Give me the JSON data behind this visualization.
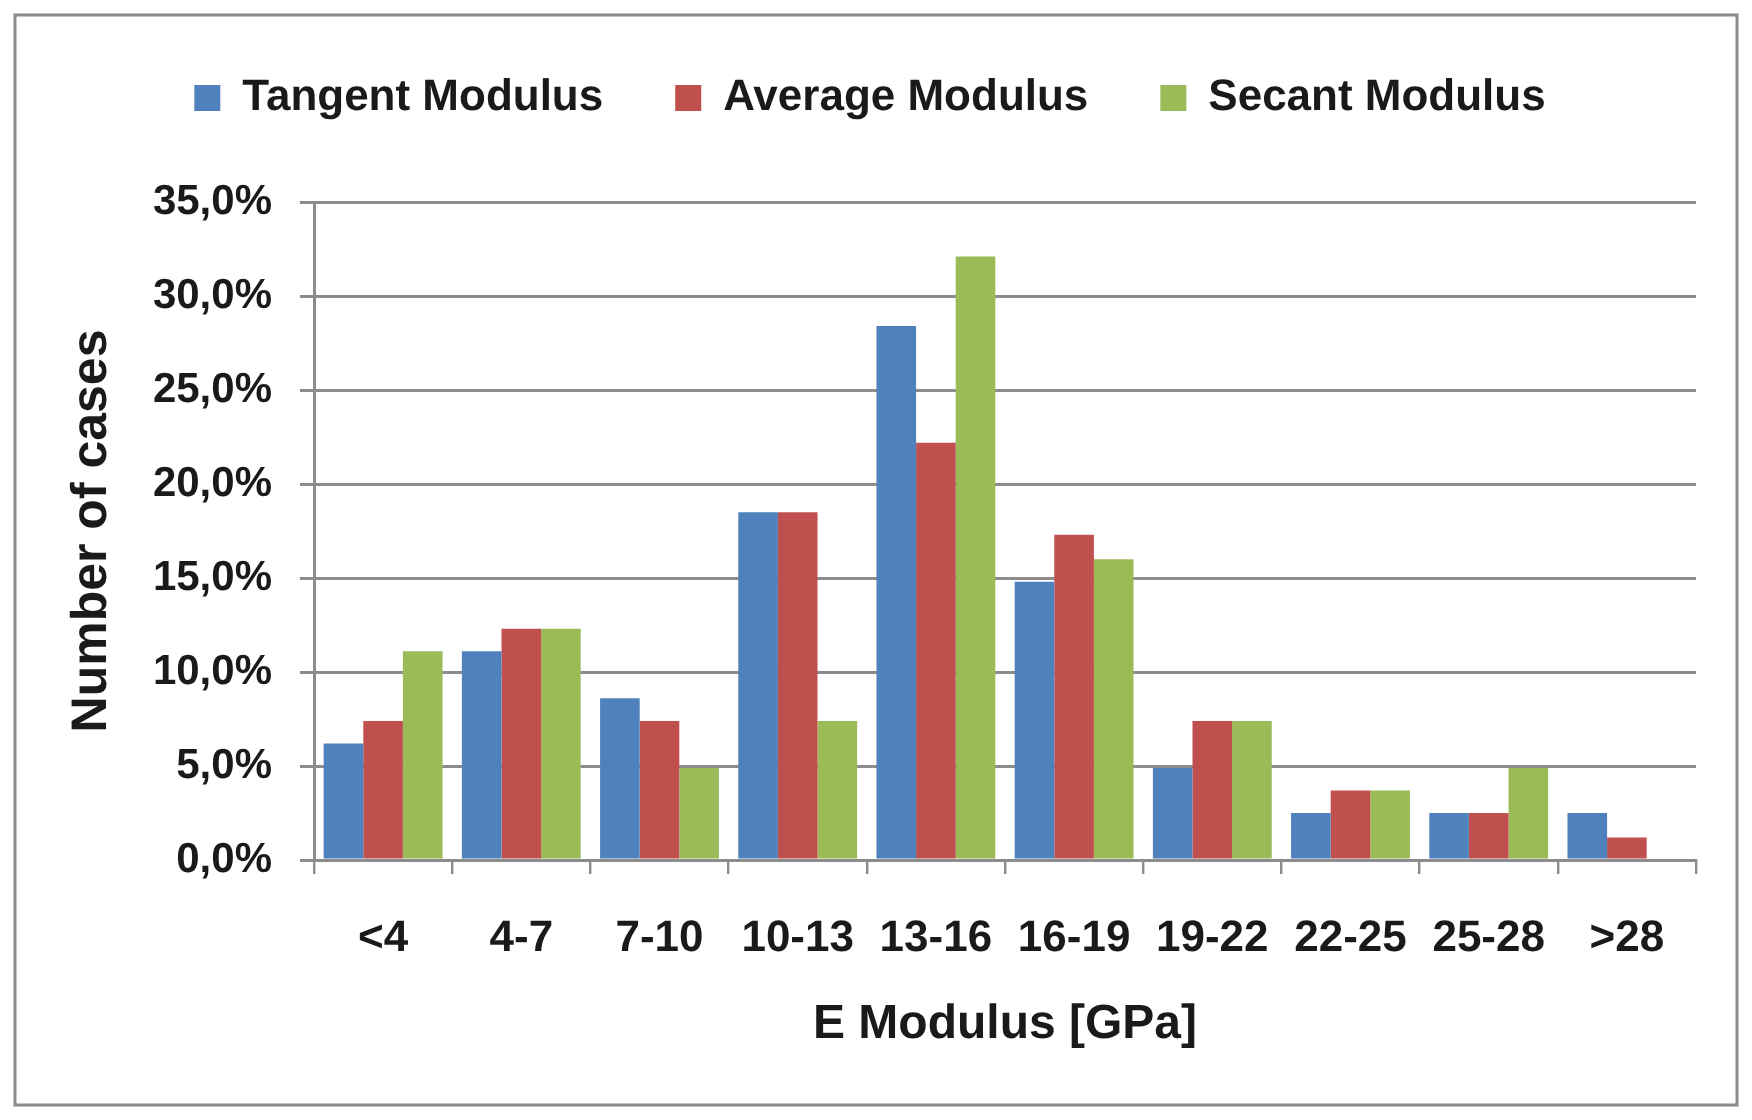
{
  "chart_data": {
    "type": "bar",
    "xlabel": "E Modulus [GPa]",
    "ylabel": "Number of cases",
    "categories": [
      "<4",
      "4-7",
      "7-10",
      "10-13",
      "13-16",
      "16-19",
      "19-22",
      "22-25",
      "25-28",
      ">28"
    ],
    "series": [
      {
        "name": "Tangent Modulus",
        "color": "#4f81bd",
        "values": [
          6.2,
          11.1,
          8.6,
          18.5,
          28.4,
          14.8,
          4.9,
          2.5,
          2.5,
          2.5
        ]
      },
      {
        "name": "Average Modulus",
        "color": "#c0504d",
        "values": [
          7.4,
          12.3,
          7.4,
          18.5,
          22.2,
          17.3,
          7.4,
          3.7,
          2.5,
          1.2
        ]
      },
      {
        "name": "Secant Modulus",
        "color": "#9bbb59",
        "values": [
          11.1,
          12.3,
          4.9,
          7.4,
          32.1,
          16.0,
          7.4,
          3.7,
          4.9,
          null
        ]
      }
    ],
    "ylim": [
      0,
      35
    ],
    "yticks": [
      {
        "value": 0,
        "label": "0,0%"
      },
      {
        "value": 5,
        "label": "5,0%"
      },
      {
        "value": 10,
        "label": "10,0%"
      },
      {
        "value": 15,
        "label": "15,0%"
      },
      {
        "value": 20,
        "label": "20,0%"
      },
      {
        "value": 25,
        "label": "25,0%"
      },
      {
        "value": 30,
        "label": "30,0%"
      },
      {
        "value": 35,
        "label": "35,0%"
      }
    ],
    "grid": "y",
    "legend": "top"
  }
}
